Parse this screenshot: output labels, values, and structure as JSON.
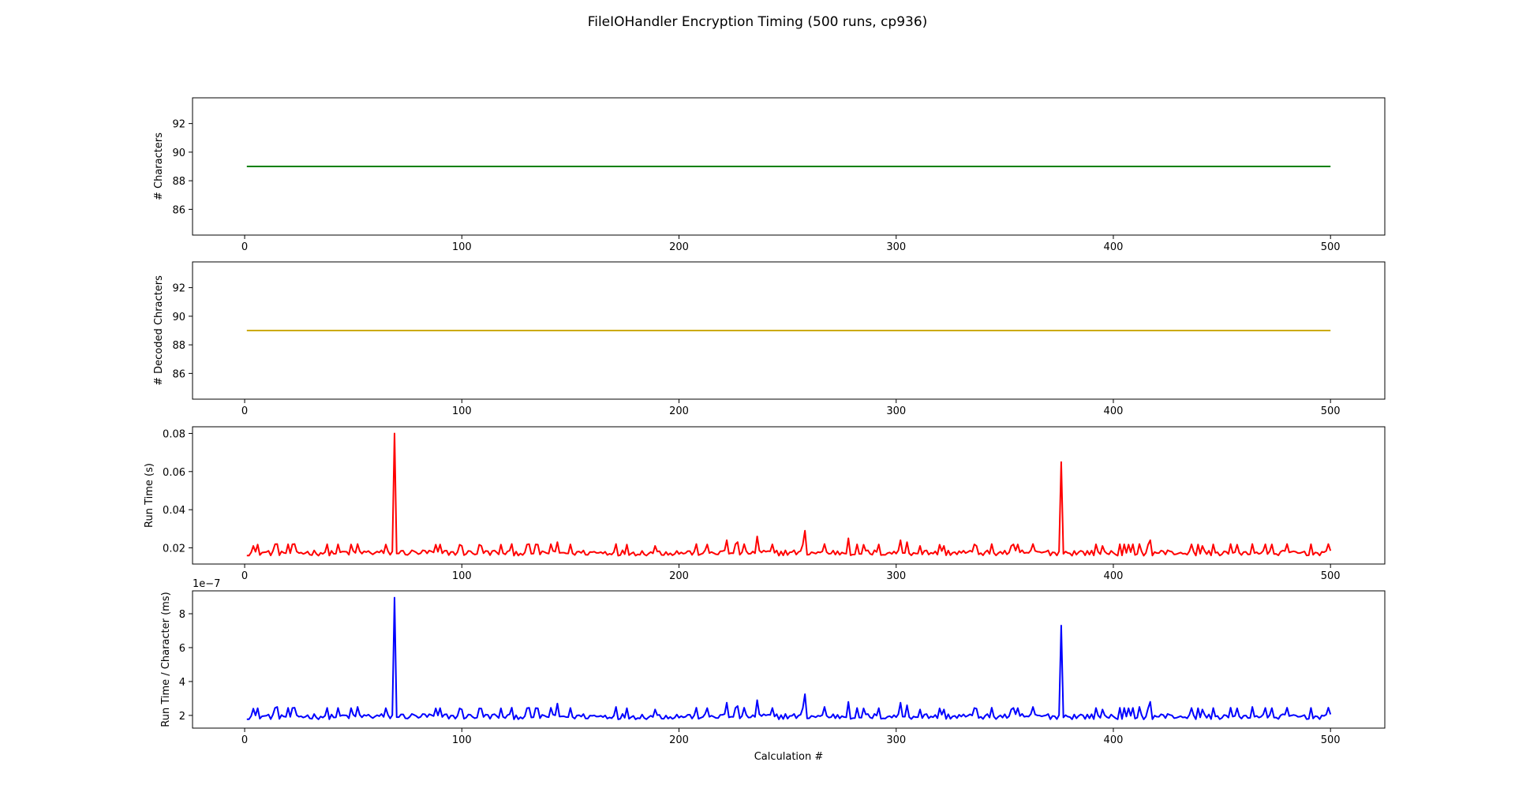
{
  "title": "FileIOHandler Encryption Timing (500 runs, cp936)",
  "chart_data": [
    {
      "type": "line",
      "ylabel": "# Characters",
      "xlabel": "",
      "color": "#008000",
      "xlim": [
        -24,
        525
      ],
      "ylim": [
        84.2,
        93.8
      ],
      "xticks": [
        0,
        100,
        200,
        300,
        400,
        500
      ],
      "xtick_labels": [
        "0",
        "100",
        "200",
        "300",
        "400",
        "500"
      ],
      "yticks": [
        86,
        88,
        90,
        92
      ],
      "ytick_labels": [
        "86",
        "88",
        "90",
        "92"
      ],
      "series": [
        {
          "x_start": 1,
          "x_end": 500,
          "constant_value": 89
        }
      ]
    },
    {
      "type": "line",
      "ylabel": "# Decoded Chracters",
      "xlabel": "",
      "color": "#ccaa00",
      "xlim": [
        -24,
        525
      ],
      "ylim": [
        84.2,
        93.8
      ],
      "xticks": [
        0,
        100,
        200,
        300,
        400,
        500
      ],
      "xtick_labels": [
        "0",
        "100",
        "200",
        "300",
        "400",
        "500"
      ],
      "yticks": [
        86,
        88,
        90,
        92
      ],
      "ytick_labels": [
        "86",
        "88",
        "90",
        "92"
      ],
      "series": [
        {
          "x_start": 1,
          "x_end": 500,
          "constant_value": 89
        }
      ]
    },
    {
      "type": "line",
      "ylabel": "Run Time (s)",
      "xlabel": "",
      "color": "#ff0000",
      "xlim": [
        -24,
        525
      ],
      "ylim": [
        0.0115,
        0.0835
      ],
      "xticks": [
        0,
        100,
        200,
        300,
        400,
        500
      ],
      "xtick_labels": [
        "0",
        "100",
        "200",
        "300",
        "400",
        "500"
      ],
      "yticks": [
        0.02,
        0.04,
        0.06,
        0.08
      ],
      "ytick_labels": [
        "0.02",
        "0.04",
        "0.06",
        "0.08"
      ],
      "series": [
        {
          "x_start": 1,
          "x_end": 500,
          "baseline": 0.0175,
          "spikes": [
            [
              69,
              0.08
            ],
            [
              376,
              0.065
            ],
            [
              258,
              0.029
            ],
            [
              236,
              0.026
            ],
            [
              278,
              0.025
            ],
            [
              222,
              0.024
            ],
            [
              302,
              0.024
            ],
            [
              417,
              0.024
            ],
            [
              144,
              0.023
            ],
            [
              363,
              0.022
            ],
            [
              171,
              0.022
            ],
            [
              464,
              0.022
            ],
            [
              412,
              0.022
            ],
            [
              15,
              0.022
            ],
            [
              52,
              0.022
            ],
            [
              109,
              0.021
            ],
            [
              337,
              0.021
            ],
            [
              311,
              0.021
            ],
            [
              305,
              0.023
            ],
            [
              227,
              0.023
            ],
            [
              267,
              0.022
            ],
            [
              4,
              0.021
            ],
            [
              189,
              0.021
            ],
            [
              322,
              0.021
            ],
            [
              395,
              0.021
            ],
            [
              441,
              0.021
            ],
            [
              100,
              0.021
            ],
            [
              353,
              0.021
            ]
          ]
        }
      ]
    },
    {
      "type": "line",
      "ylabel": "Run Time / Character (ms)",
      "xlabel": "Calculation #",
      "offset_label": "1e−7",
      "color": "#0000ff",
      "xlim": [
        -24,
        525
      ],
      "ylim": [
        1.25,
        9.35
      ],
      "xticks": [
        0,
        100,
        200,
        300,
        400,
        500
      ],
      "xtick_labels": [
        "0",
        "100",
        "200",
        "300",
        "400",
        "500"
      ],
      "yticks": [
        2,
        4,
        6,
        8
      ],
      "ytick_labels": [
        "2",
        "4",
        "6",
        "8"
      ],
      "series": [
        {
          "x_start": 1,
          "x_end": 500,
          "baseline": 1.95,
          "spikes": [
            [
              69,
              8.95
            ],
            [
              376,
              7.3
            ],
            [
              258,
              3.25
            ],
            [
              236,
              2.9
            ],
            [
              278,
              2.8
            ],
            [
              222,
              2.75
            ],
            [
              302,
              2.75
            ],
            [
              417,
              2.8
            ],
            [
              144,
              2.7
            ],
            [
              363,
              2.5
            ],
            [
              171,
              2.5
            ],
            [
              464,
              2.5
            ],
            [
              412,
              2.5
            ],
            [
              15,
              2.5
            ],
            [
              52,
              2.5
            ],
            [
              109,
              2.4
            ],
            [
              337,
              2.4
            ],
            [
              311,
              2.35
            ],
            [
              305,
              2.6
            ],
            [
              227,
              2.55
            ],
            [
              267,
              2.5
            ],
            [
              4,
              2.4
            ],
            [
              189,
              2.35
            ],
            [
              322,
              2.35
            ],
            [
              395,
              2.35
            ],
            [
              441,
              2.35
            ],
            [
              100,
              2.35
            ],
            [
              353,
              2.35
            ]
          ]
        }
      ]
    }
  ]
}
